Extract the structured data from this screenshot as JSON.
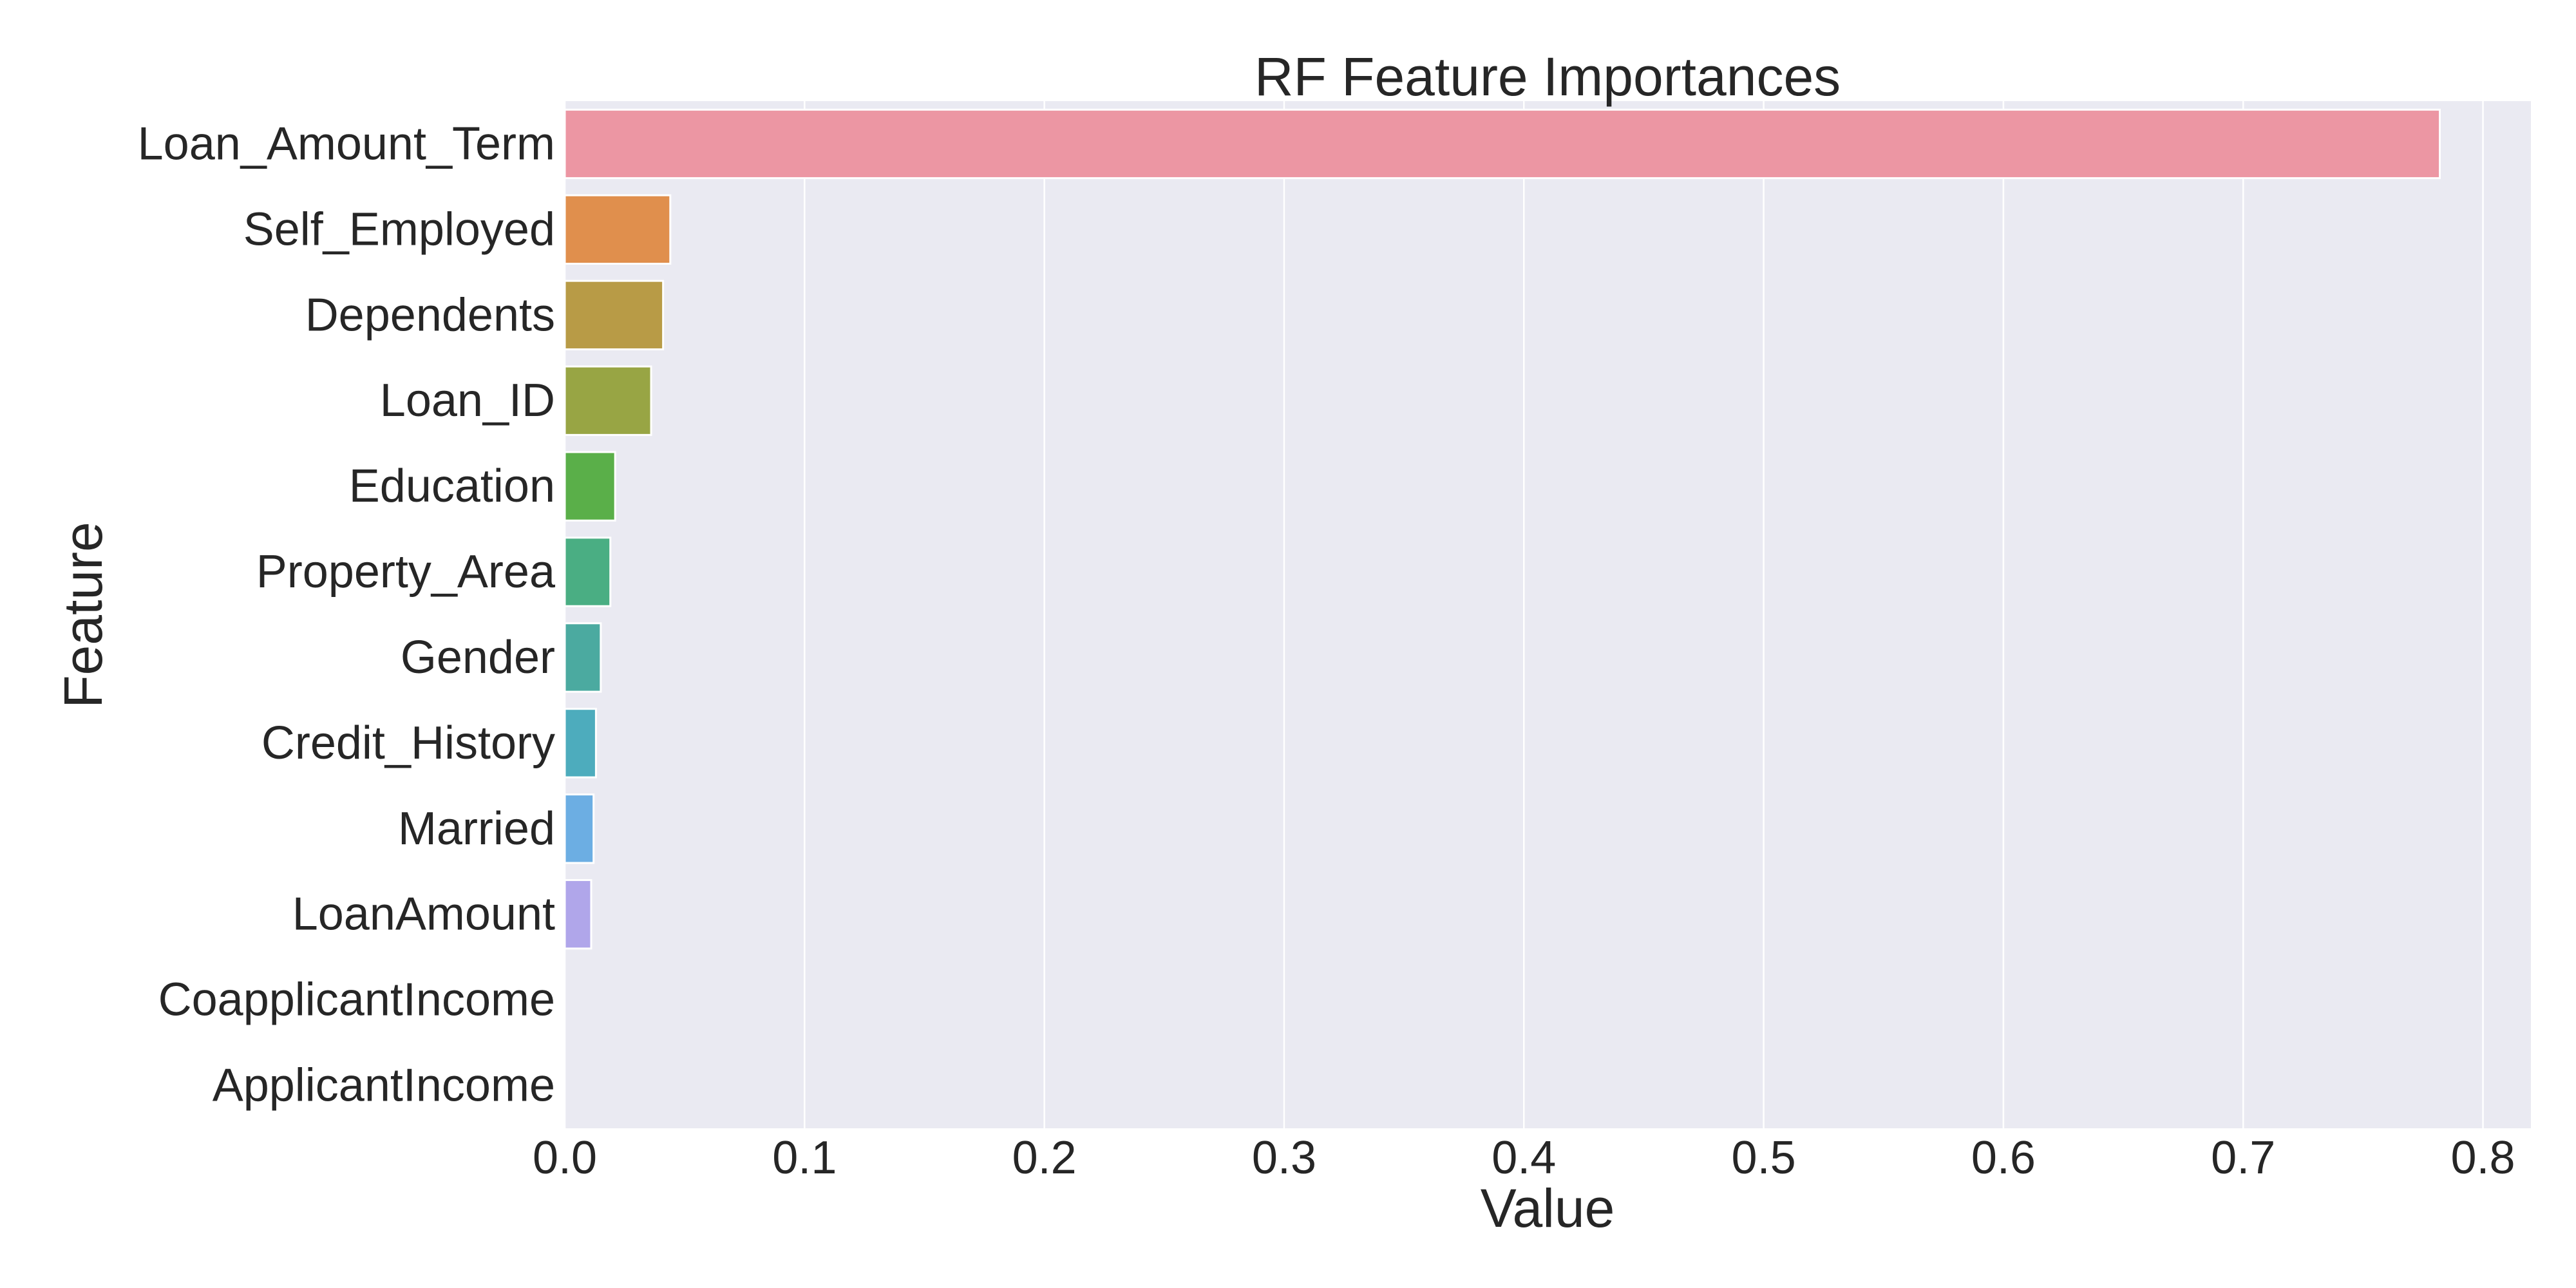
{
  "chart_data": {
    "type": "bar",
    "orientation": "horizontal",
    "title": "RF Feature Importances",
    "xlabel": "Value",
    "ylabel": "Feature",
    "xlim": [
      0,
      0.82
    ],
    "x_ticks": [
      "0.0",
      "0.1",
      "0.2",
      "0.3",
      "0.4",
      "0.5",
      "0.6",
      "0.7",
      "0.8"
    ],
    "grid": true,
    "legend": "none",
    "categories": [
      "Loan_Amount_Term",
      "Self_Employed",
      "Dependents",
      "Loan_ID",
      "Education",
      "Property_Area",
      "Gender",
      "Credit_History",
      "Married",
      "LoanAmount",
      "CoapplicantIncome",
      "ApplicantIncome"
    ],
    "values": [
      0.782,
      0.044,
      0.041,
      0.036,
      0.021,
      0.019,
      0.015,
      0.013,
      0.012,
      0.011,
      0.0,
      0.0
    ],
    "colors": [
      "#ec96a3",
      "#e08f4d",
      "#b89b46",
      "#98a544",
      "#5aaf49",
      "#4aae83",
      "#4baaa0",
      "#4dacbd",
      "#6caee3",
      "#b0a6ea",
      "#e39cda",
      "#ee97c1"
    ],
    "plot_background": "#eaeaf2",
    "grid_color": "#ffffff"
  }
}
